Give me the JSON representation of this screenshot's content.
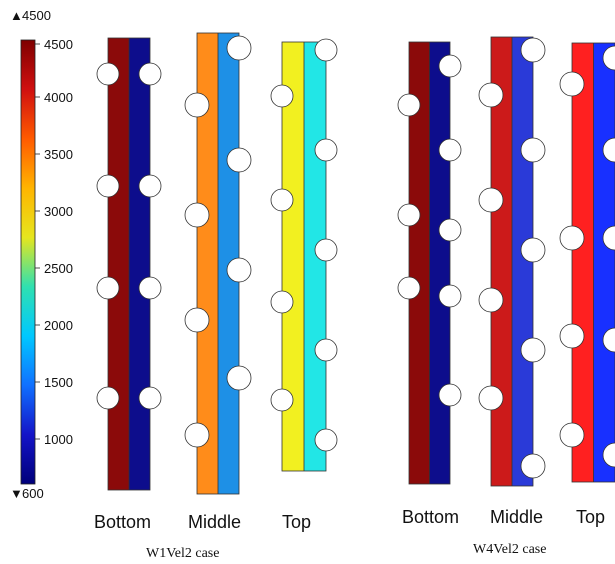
{
  "colorbar": {
    "max_label": "4500",
    "min_label": "600",
    "max_marker": "▲",
    "min_marker": "▼",
    "ticks": [
      "4500",
      "4000",
      "3500",
      "3000",
      "2500",
      "2000",
      "1500",
      "1000"
    ],
    "gradient": [
      "#7f0000",
      "#d01010",
      "#ff5a00",
      "#ffb400",
      "#e6e61e",
      "#2fe0b0",
      "#00c8ff",
      "#1070ff",
      "#1414c8",
      "#00007a"
    ]
  },
  "cases": [
    {
      "label": "W1Vel2 case",
      "strips": [
        {
          "label": "Bottom",
          "left_color": "#8b0a0a",
          "right_color": "#0d0d8c"
        },
        {
          "label": "Middle",
          "left_color": "#ff8c1a",
          "right_color": "#1e90e6"
        },
        {
          "label": "Top",
          "left_color": "#f2f020",
          "right_color": "#22e6e6"
        }
      ]
    },
    {
      "label": "W4Vel2 case",
      "strips": [
        {
          "label": "Bottom",
          "left_color": "#8b0a0a",
          "right_color": "#0d0d8c"
        },
        {
          "label": "Middle",
          "left_color": "#cc1a1a",
          "right_color": "#2a3ad8"
        },
        {
          "label": "Top",
          "left_color": "#ff2020",
          "right_color": "#1830ff"
        }
      ]
    }
  ]
}
